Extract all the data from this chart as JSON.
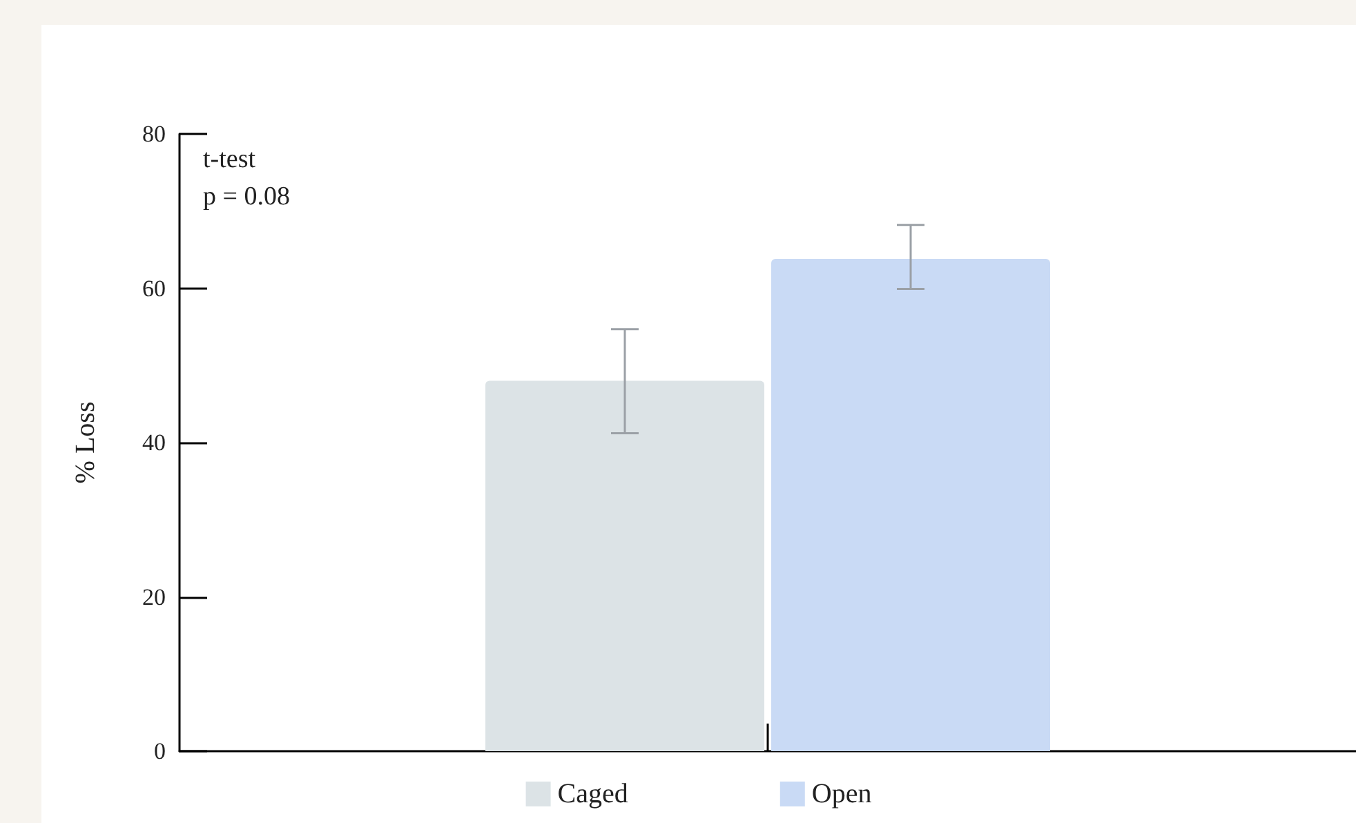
{
  "chart_data": {
    "type": "bar",
    "ylabel": "% Loss",
    "categories": [
      null
    ],
    "series": [
      {
        "name": "Caged",
        "color": "#dce3e6",
        "values": [
          48
        ],
        "errors": [
          [
            41.2,
            54.7
          ]
        ]
      },
      {
        "name": "Open",
        "color": "#c9daf5",
        "values": [
          63.8
        ],
        "errors": [
          [
            59.9,
            68.2
          ]
        ]
      }
    ],
    "ylim": [
      0,
      80
    ],
    "yticks": [
      0,
      20,
      40,
      60,
      80
    ],
    "grid": false,
    "legend": "bottom",
    "annotations": [
      "t-test",
      "p = 0.08"
    ]
  }
}
